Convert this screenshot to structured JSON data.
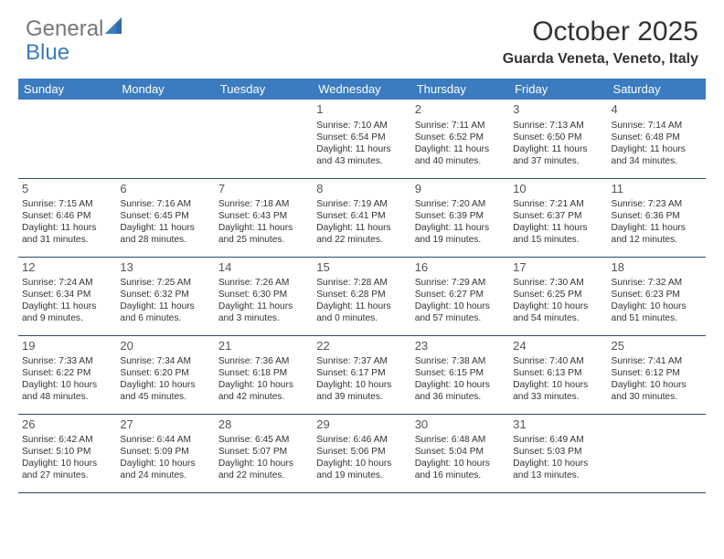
{
  "brand": {
    "part1": "General",
    "part2": "Blue"
  },
  "title": "October 2025",
  "location": "Guarda Veneta, Veneto, Italy",
  "colors": {
    "header_bg": "#3b7bbf",
    "header_text": "#ffffff",
    "border": "#274a6d",
    "text": "#333333",
    "logo_gray": "#777777",
    "logo_blue": "#3b7bbf",
    "background": "#ffffff"
  },
  "weekdays": [
    "Sunday",
    "Monday",
    "Tuesday",
    "Wednesday",
    "Thursday",
    "Friday",
    "Saturday"
  ],
  "weeks": [
    [
      null,
      null,
      null,
      {
        "n": "1",
        "sr": "7:10 AM",
        "ss": "6:54 PM",
        "dl": "11 hours and 43 minutes."
      },
      {
        "n": "2",
        "sr": "7:11 AM",
        "ss": "6:52 PM",
        "dl": "11 hours and 40 minutes."
      },
      {
        "n": "3",
        "sr": "7:13 AM",
        "ss": "6:50 PM",
        "dl": "11 hours and 37 minutes."
      },
      {
        "n": "4",
        "sr": "7:14 AM",
        "ss": "6:48 PM",
        "dl": "11 hours and 34 minutes."
      }
    ],
    [
      {
        "n": "5",
        "sr": "7:15 AM",
        "ss": "6:46 PM",
        "dl": "11 hours and 31 minutes."
      },
      {
        "n": "6",
        "sr": "7:16 AM",
        "ss": "6:45 PM",
        "dl": "11 hours and 28 minutes."
      },
      {
        "n": "7",
        "sr": "7:18 AM",
        "ss": "6:43 PM",
        "dl": "11 hours and 25 minutes."
      },
      {
        "n": "8",
        "sr": "7:19 AM",
        "ss": "6:41 PM",
        "dl": "11 hours and 22 minutes."
      },
      {
        "n": "9",
        "sr": "7:20 AM",
        "ss": "6:39 PM",
        "dl": "11 hours and 19 minutes."
      },
      {
        "n": "10",
        "sr": "7:21 AM",
        "ss": "6:37 PM",
        "dl": "11 hours and 15 minutes."
      },
      {
        "n": "11",
        "sr": "7:23 AM",
        "ss": "6:36 PM",
        "dl": "11 hours and 12 minutes."
      }
    ],
    [
      {
        "n": "12",
        "sr": "7:24 AM",
        "ss": "6:34 PM",
        "dl": "11 hours and 9 minutes."
      },
      {
        "n": "13",
        "sr": "7:25 AM",
        "ss": "6:32 PM",
        "dl": "11 hours and 6 minutes."
      },
      {
        "n": "14",
        "sr": "7:26 AM",
        "ss": "6:30 PM",
        "dl": "11 hours and 3 minutes."
      },
      {
        "n": "15",
        "sr": "7:28 AM",
        "ss": "6:28 PM",
        "dl": "11 hours and 0 minutes."
      },
      {
        "n": "16",
        "sr": "7:29 AM",
        "ss": "6:27 PM",
        "dl": "10 hours and 57 minutes."
      },
      {
        "n": "17",
        "sr": "7:30 AM",
        "ss": "6:25 PM",
        "dl": "10 hours and 54 minutes."
      },
      {
        "n": "18",
        "sr": "7:32 AM",
        "ss": "6:23 PM",
        "dl": "10 hours and 51 minutes."
      }
    ],
    [
      {
        "n": "19",
        "sr": "7:33 AM",
        "ss": "6:22 PM",
        "dl": "10 hours and 48 minutes."
      },
      {
        "n": "20",
        "sr": "7:34 AM",
        "ss": "6:20 PM",
        "dl": "10 hours and 45 minutes."
      },
      {
        "n": "21",
        "sr": "7:36 AM",
        "ss": "6:18 PM",
        "dl": "10 hours and 42 minutes."
      },
      {
        "n": "22",
        "sr": "7:37 AM",
        "ss": "6:17 PM",
        "dl": "10 hours and 39 minutes."
      },
      {
        "n": "23",
        "sr": "7:38 AM",
        "ss": "6:15 PM",
        "dl": "10 hours and 36 minutes."
      },
      {
        "n": "24",
        "sr": "7:40 AM",
        "ss": "6:13 PM",
        "dl": "10 hours and 33 minutes."
      },
      {
        "n": "25",
        "sr": "7:41 AM",
        "ss": "6:12 PM",
        "dl": "10 hours and 30 minutes."
      }
    ],
    [
      {
        "n": "26",
        "sr": "6:42 AM",
        "ss": "5:10 PM",
        "dl": "10 hours and 27 minutes."
      },
      {
        "n": "27",
        "sr": "6:44 AM",
        "ss": "5:09 PM",
        "dl": "10 hours and 24 minutes."
      },
      {
        "n": "28",
        "sr": "6:45 AM",
        "ss": "5:07 PM",
        "dl": "10 hours and 22 minutes."
      },
      {
        "n": "29",
        "sr": "6:46 AM",
        "ss": "5:06 PM",
        "dl": "10 hours and 19 minutes."
      },
      {
        "n": "30",
        "sr": "6:48 AM",
        "ss": "5:04 PM",
        "dl": "10 hours and 16 minutes."
      },
      {
        "n": "31",
        "sr": "6:49 AM",
        "ss": "5:03 PM",
        "dl": "10 hours and 13 minutes."
      },
      null
    ]
  ],
  "labels": {
    "sunrise": "Sunrise:",
    "sunset": "Sunset:",
    "daylight": "Daylight:"
  }
}
